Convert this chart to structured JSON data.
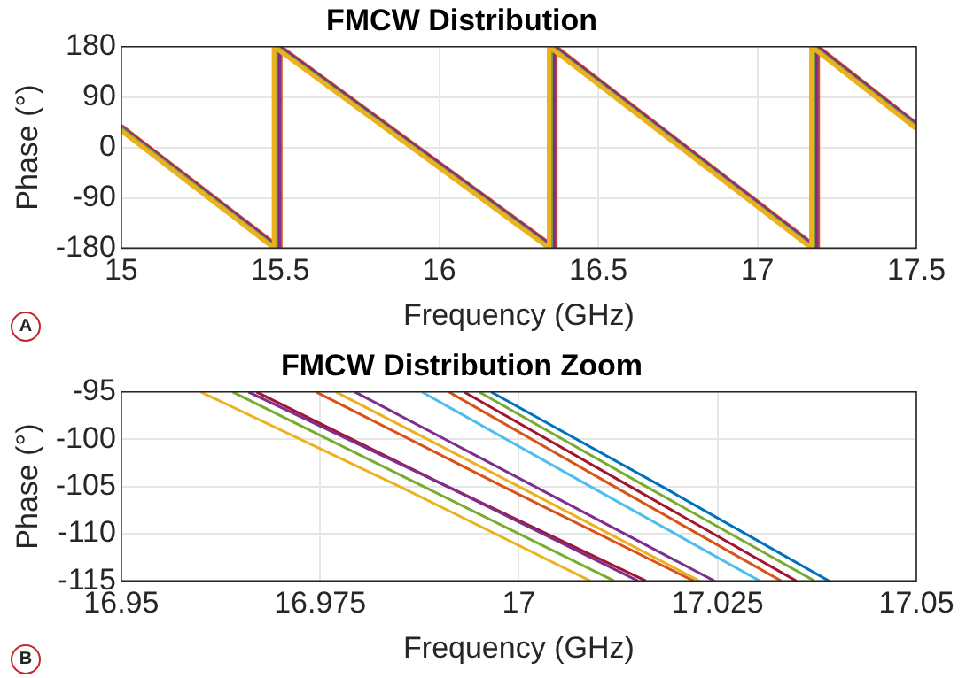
{
  "chart_data": [
    {
      "type": "line",
      "title": "FMCW Distribution",
      "xlabel": "Frequency (GHz)",
      "ylabel": "Phase (°)",
      "xlim": [
        15,
        17.5
      ],
      "xticks": [
        15,
        15.5,
        16,
        16.5,
        17,
        17.5
      ],
      "ylim": [
        -180,
        180
      ],
      "yticks": [
        -180,
        -90,
        0,
        90,
        180
      ],
      "grid": true,
      "marker": "none",
      "annotations": [
        "A"
      ],
      "series": [
        {
          "color": "#edb120",
          "x": [
            15,
            15.48,
            15.48,
            16.345,
            16.345,
            17.17,
            17.17,
            17.5
          ],
          "values": [
            30,
            -180,
            180,
            -180,
            180,
            -180,
            180,
            33
          ]
        },
        {
          "color": "#77ac30",
          "x": [
            15,
            15.485,
            15.485,
            16.35,
            16.35,
            17.175,
            17.175,
            17.5
          ],
          "values": [
            33,
            -180,
            180,
            -180,
            180,
            -180,
            180,
            36
          ]
        },
        {
          "color": "#7e2f8e",
          "x": [
            15,
            15.495,
            15.495,
            16.36,
            16.36,
            17.185,
            17.185,
            17.5
          ],
          "values": [
            36,
            -180,
            180,
            -180,
            180,
            -180,
            180,
            40
          ]
        },
        {
          "color": "#d95319",
          "x": [
            15,
            15.5,
            15.5,
            16.365,
            16.365,
            17.19,
            17.19,
            17.5
          ],
          "values": [
            38,
            -180,
            180,
            -180,
            180,
            -180,
            180,
            42
          ]
        }
      ]
    },
    {
      "type": "line",
      "title": "FMCW Distribution Zoom",
      "xlabel": "Frequency (GHz)",
      "ylabel": "Phase (°)",
      "xlim": [
        16.95,
        17.05
      ],
      "xticks": [
        16.95,
        16.975,
        17,
        17.025,
        17.05
      ],
      "ylim": [
        -115,
        -95
      ],
      "yticks": [
        -115,
        -110,
        -105,
        -100,
        -95
      ],
      "grid": true,
      "marker": "none",
      "annotations": [
        "B"
      ],
      "series": [
        {
          "color": "#edb120",
          "x": [
            16.96,
            16.985,
            17.009
          ],
          "values": [
            -95,
            -105,
            -115
          ]
        },
        {
          "color": "#77ac30",
          "x": [
            16.964,
            16.988,
            17.012
          ],
          "values": [
            -95,
            -105,
            -115
          ]
        },
        {
          "color": "#7e2f8e",
          "x": [
            16.966,
            16.991,
            17.015
          ],
          "values": [
            -95,
            -105,
            -115
          ]
        },
        {
          "color": "#a2142f",
          "x": [
            16.967,
            16.991,
            17.016
          ],
          "values": [
            -95,
            -105,
            -115
          ]
        },
        {
          "color": "#d95319",
          "x": [
            16.9745,
            16.998,
            17.022
          ],
          "values": [
            -95,
            -105,
            -115
          ]
        },
        {
          "color": "#edb120",
          "x": [
            16.977,
            17.0,
            17.0227
          ],
          "values": [
            -95,
            -105,
            -115
          ]
        },
        {
          "color": "#7e2f8e",
          "x": [
            16.9794,
            17.002,
            17.0246
          ],
          "values": [
            -95,
            -105,
            -115
          ]
        },
        {
          "color": "#4dbeee",
          "x": [
            16.9878,
            17.009,
            17.0303
          ],
          "values": [
            -95,
            -105,
            -115
          ]
        },
        {
          "color": "#d95319",
          "x": [
            16.9912,
            17.012,
            17.033
          ],
          "values": [
            -95,
            -105,
            -115
          ]
        },
        {
          "color": "#a2142f",
          "x": [
            16.9931,
            17.014,
            17.0349
          ],
          "values": [
            -95,
            -105,
            -115
          ]
        },
        {
          "color": "#77ac30",
          "x": [
            16.995,
            17.016,
            17.0372
          ],
          "values": [
            -95,
            -105,
            -115
          ]
        },
        {
          "color": "#0072bd",
          "x": [
            16.9965,
            17.018,
            17.039
          ],
          "values": [
            -95,
            -105,
            -115
          ]
        }
      ]
    }
  ]
}
